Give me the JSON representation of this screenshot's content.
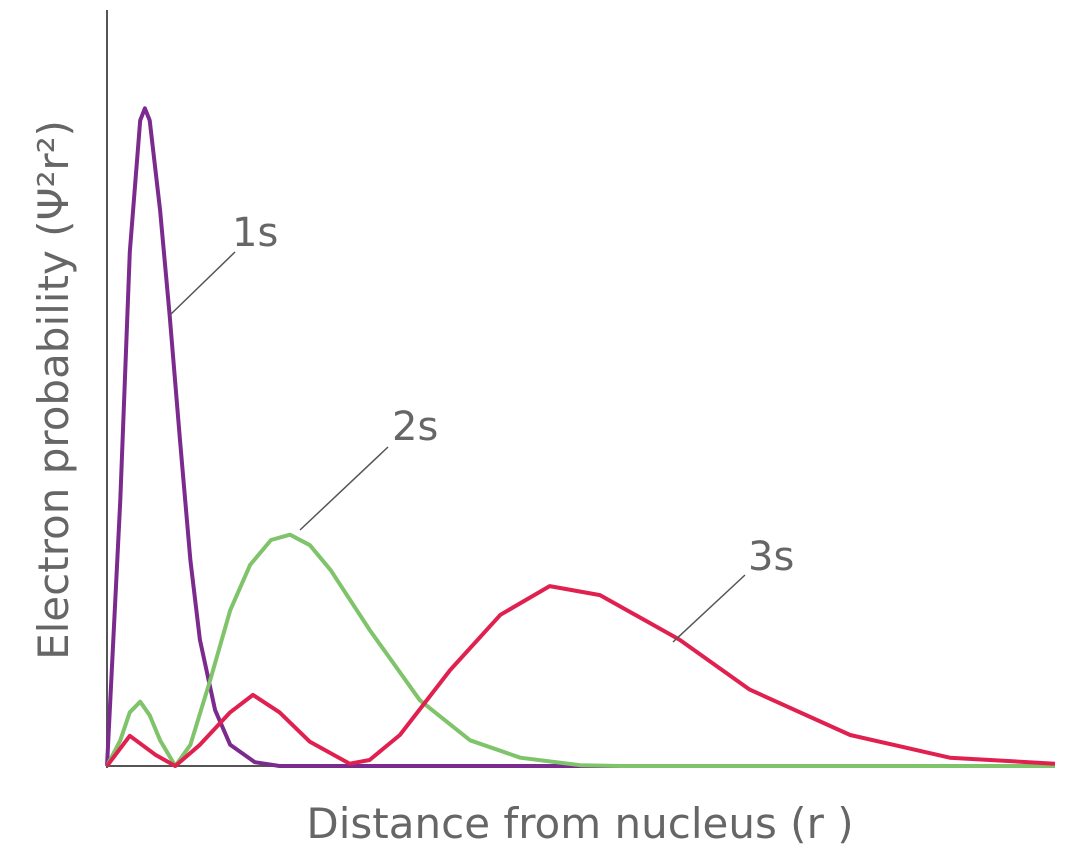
{
  "chart_data": {
    "type": "line",
    "x_label": "Distance from nucleus (r )",
    "y_label": "Electron probability (Ψ²r²)",
    "xlim": [
      0,
      100
    ],
    "ylim": [
      0,
      100
    ],
    "series": [
      {
        "name": "1s",
        "color": "#7b2a8d",
        "x": [
          0,
          1.4,
          2.4,
          3.5,
          4.0,
          4.5,
          5.6,
          6.6,
          7.7,
          8.8,
          9.8,
          11.4,
          13.0,
          15.6,
          18.2,
          100
        ],
        "values": [
          0,
          35.2,
          68,
          85.4,
          87.0,
          85.4,
          73.5,
          59.7,
          43.1,
          27.2,
          16.7,
          7.4,
          2.8,
          0.5,
          0,
          0
        ]
      },
      {
        "name": "2s",
        "color": "#7fc36b",
        "x": [
          0,
          1.4,
          2.4,
          3.5,
          4.5,
          5.6,
          7.2,
          8.8,
          10.9,
          13.0,
          15.1,
          17.3,
          19.3,
          21.4,
          23.6,
          27.7,
          33.0,
          38.3,
          43.6,
          49.9,
          54.1,
          100
        ],
        "values": [
          0,
          3.4,
          7.1,
          8.5,
          6.7,
          3.4,
          0,
          2.8,
          11.4,
          20.6,
          26.6,
          29.9,
          30.6,
          29.2,
          25.9,
          18.0,
          8.7,
          3.4,
          1.1,
          0.1,
          0,
          0
        ]
      },
      {
        "name": "3s",
        "color": "#e0204f",
        "x": [
          0,
          2.4,
          5.1,
          7.2,
          9.8,
          13.0,
          15.4,
          18.2,
          21.4,
          25.6,
          27.7,
          30.9,
          36.2,
          41.5,
          46.7,
          52.0,
          60.4,
          67.8,
          78.4,
          88.9,
          100
        ],
        "values": [
          0,
          4.0,
          1.5,
          0,
          2.8,
          7.1,
          9.4,
          7.1,
          3.2,
          0.3,
          0.8,
          4.1,
          12.7,
          20.0,
          23.8,
          22.6,
          16.7,
          10.1,
          4.1,
          1.1,
          0.3
        ]
      }
    ]
  }
}
